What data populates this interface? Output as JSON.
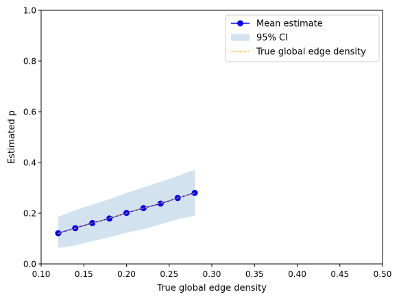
{
  "chart_data": {
    "type": "line",
    "title": "",
    "xlabel": "True global edge density",
    "ylabel": "Estimated p",
    "xlim": [
      0.1,
      0.5
    ],
    "ylim": [
      0.0,
      1.0
    ],
    "xticks": [
      "0.10",
      "0.15",
      "0.20",
      "0.25",
      "0.30",
      "0.35",
      "0.40",
      "0.45",
      "0.50"
    ],
    "yticks": [
      "0.0",
      "0.2",
      "0.4",
      "0.6",
      "0.8",
      "1.0"
    ],
    "grid": false,
    "legend_position": "top-right",
    "x": [
      0.12,
      0.14,
      0.16,
      0.18,
      0.2,
      0.22,
      0.24,
      0.26,
      0.28
    ],
    "series": [
      {
        "name": "Mean estimate",
        "kind": "line-marker",
        "color": "#0000ff",
        "values": [
          0.121,
          0.141,
          0.161,
          0.179,
          0.201,
          0.22,
          0.238,
          0.26,
          0.28
        ]
      },
      {
        "name": "True global edge density",
        "kind": "dashed-line",
        "color": "#ffa500",
        "values": [
          0.12,
          0.14,
          0.16,
          0.18,
          0.2,
          0.22,
          0.24,
          0.26,
          0.28
        ]
      }
    ],
    "band": {
      "name": "95% CI",
      "color": "#a6c8e0",
      "lower": [
        0.063,
        0.073,
        0.09,
        0.105,
        0.123,
        0.137,
        0.156,
        0.176,
        0.19
      ],
      "upper": [
        0.185,
        0.212,
        0.234,
        0.255,
        0.28,
        0.302,
        0.324,
        0.347,
        0.371
      ]
    }
  }
}
